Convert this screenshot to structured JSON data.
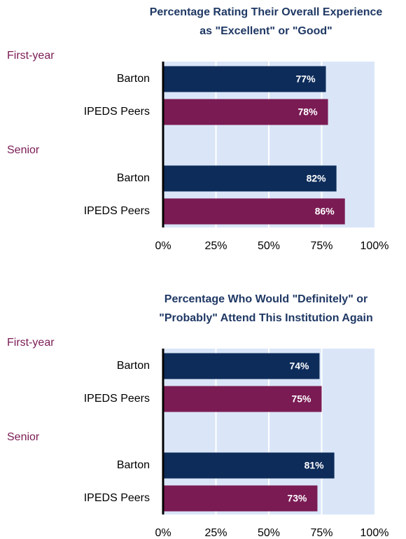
{
  "chart_data": [
    {
      "type": "bar",
      "orientation": "horizontal",
      "title": [
        "Percentage Rating Their Overall Experience",
        "as \"Excellent\" or \"Good\""
      ],
      "groups": [
        {
          "name": "First-year",
          "categories": [
            "Barton",
            "IPEDS Peers"
          ],
          "values": [
            77,
            78
          ],
          "value_labels": [
            "77%",
            "78%"
          ]
        },
        {
          "name": "Senior",
          "categories": [
            "Barton",
            "IPEDS Peers"
          ],
          "values": [
            82,
            86
          ],
          "value_labels": [
            "82%",
            "86%"
          ]
        }
      ],
      "colors": [
        "#0d2c5a",
        "#7a1b54"
      ],
      "xlim": [
        0,
        100
      ],
      "xticks": [
        {
          "value": 0,
          "label": "0%"
        },
        {
          "value": 25,
          "label": "25%"
        },
        {
          "value": 50,
          "label": "50%"
        },
        {
          "value": 75,
          "label": "75%"
        },
        {
          "value": 100,
          "label": "100%"
        }
      ],
      "grid": true
    },
    {
      "type": "bar",
      "orientation": "horizontal",
      "title": [
        "Percentage Who Would \"Definitely\" or",
        "\"Probably\" Attend This Institution Again"
      ],
      "groups": [
        {
          "name": "First-year",
          "categories": [
            "Barton",
            "IPEDS Peers"
          ],
          "values": [
            74,
            75
          ],
          "value_labels": [
            "74%",
            "75%"
          ]
        },
        {
          "name": "Senior",
          "categories": [
            "Barton",
            "IPEDS Peers"
          ],
          "values": [
            81,
            73
          ],
          "value_labels": [
            "81%",
            "73%"
          ]
        }
      ],
      "colors": [
        "#0d2c5a",
        "#7a1b54"
      ],
      "xlim": [
        0,
        100
      ],
      "xticks": [
        {
          "value": 0,
          "label": "0%"
        },
        {
          "value": 25,
          "label": "25%"
        },
        {
          "value": 50,
          "label": "50%"
        },
        {
          "value": 75,
          "label": "75%"
        },
        {
          "value": 100,
          "label": "100%"
        }
      ],
      "grid": true
    }
  ]
}
